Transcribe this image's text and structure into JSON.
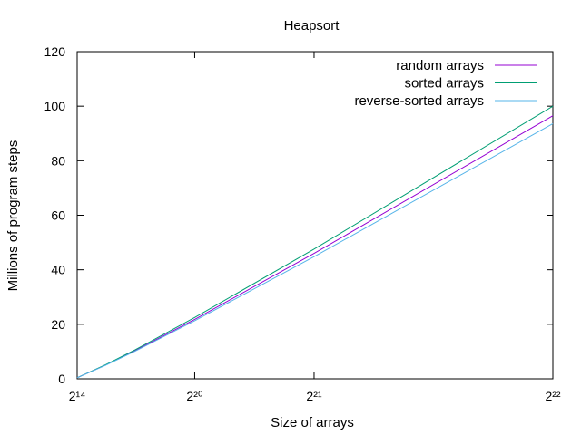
{
  "chart_data": {
    "type": "line",
    "title": "Heapsort",
    "xlabel": "Size of arrays",
    "ylabel": "Millions of program steps",
    "x_scale": "linear",
    "xlim": [
      16384,
      4194304
    ],
    "ylim": [
      0,
      120
    ],
    "x_ticks": [
      {
        "value": 16384,
        "label": "2¹⁴"
      },
      {
        "value": 1048576,
        "label": "2²⁰"
      },
      {
        "value": 2097152,
        "label": "2²¹"
      },
      {
        "value": 4194304,
        "label": "2²²"
      }
    ],
    "y_ticks": [
      0,
      20,
      40,
      60,
      80,
      100,
      120
    ],
    "grid": false,
    "legend_position": "top-right",
    "series": [
      {
        "name": "random arrays",
        "color": "#9400d3",
        "x": [
          16384,
          262144,
          524288,
          1048576,
          2097152,
          4194304
        ],
        "y": [
          0.4,
          5.0,
          10.3,
          21.8,
          46.0,
          96.5
        ]
      },
      {
        "name": "sorted arrays",
        "color": "#009e73",
        "x": [
          16384,
          262144,
          524288,
          1048576,
          2097152,
          4194304
        ],
        "y": [
          0.4,
          5.1,
          10.6,
          22.5,
          47.6,
          100.0
        ]
      },
      {
        "name": "reverse-sorted arrays",
        "color": "#56b4e9",
        "x": [
          16384,
          262144,
          524288,
          1048576,
          2097152,
          4194304
        ],
        "y": [
          0.4,
          4.9,
          10.1,
          21.3,
          44.8,
          93.6
        ]
      }
    ]
  }
}
